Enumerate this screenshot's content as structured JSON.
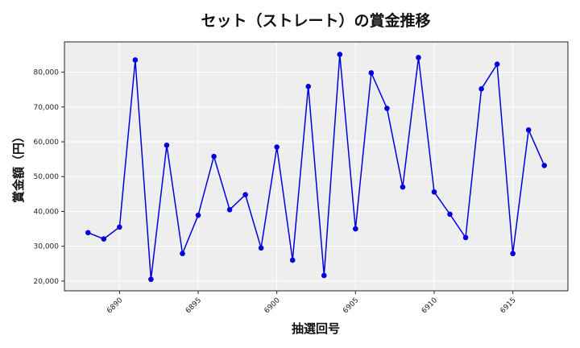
{
  "chart_data": {
    "type": "line",
    "title": "セット（ストレート）の賞金推移",
    "xlabel": "抽選回号",
    "ylabel": "賞金額（円）",
    "x": [
      6888,
      6889,
      6890,
      6891,
      6892,
      6893,
      6894,
      6895,
      6896,
      6897,
      6898,
      6899,
      6900,
      6901,
      6902,
      6903,
      6904,
      6905,
      6906,
      6907,
      6908,
      6909,
      6910,
      6911,
      6912,
      6913,
      6914,
      6915,
      6916,
      6917
    ],
    "series": [
      {
        "name": "賞金額",
        "color": "#0000dd",
        "values": [
          33900,
          32100,
          35500,
          83500,
          20500,
          59000,
          27900,
          38900,
          55800,
          40500,
          44800,
          29500,
          58500,
          26000,
          75900,
          21600,
          85100,
          35000,
          79800,
          69600,
          47000,
          84200,
          45600,
          39200,
          32500,
          75200,
          82300,
          27900,
          63400,
          53200
        ]
      }
    ],
    "xticks": [
      6890,
      6895,
      6900,
      6905,
      6910,
      6915
    ],
    "yticks": [
      20000,
      30000,
      40000,
      50000,
      60000,
      70000,
      80000
    ],
    "ytick_labels": [
      "20,000",
      "30,000",
      "40,000",
      "50,000",
      "60,000",
      "70,000",
      "80,000"
    ],
    "xlim": [
      6886.5,
      6918.5
    ],
    "ylim": [
      17200,
      88700
    ],
    "grid": true,
    "legend": "none",
    "background": "#eeeeee"
  }
}
